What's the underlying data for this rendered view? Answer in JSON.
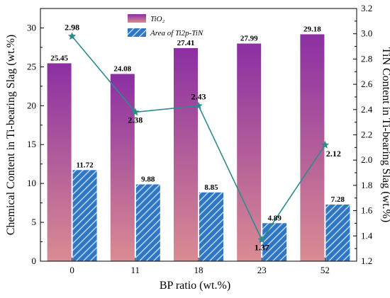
{
  "chart_data": {
    "type": "bar",
    "xlabel": "BP ratio (wt.%)",
    "ylabel": "Chemical Content in Ti-bearing Slag (wt.%)",
    "y2label": "TiN Content in Ti-bearing Slag (wt.%)",
    "categories": [
      "0",
      "11",
      "18",
      "23",
      "52"
    ],
    "ylim": [
      0,
      32.5
    ],
    "yticks": [
      "0",
      "5",
      "10",
      "15",
      "20",
      "25",
      "30"
    ],
    "y2lim": [
      1.2,
      3.2
    ],
    "y2ticks": [
      "1.2",
      "1.4",
      "1.6",
      "1.8",
      "2.0",
      "2.2",
      "2.4",
      "2.6",
      "2.8",
      "3.0",
      "3.2"
    ],
    "series": [
      {
        "name": "TiO₂",
        "type": "bar",
        "axis": "left",
        "values": [
          25.45,
          24.08,
          27.41,
          27.99,
          29.18
        ],
        "labels": [
          "25.45",
          "24.08",
          "27.41",
          "27.99",
          "29.18"
        ],
        "color_top": "#8b2fa3",
        "color_bottom": "#d98c92"
      },
      {
        "name": "Area of Ti2p-TiN",
        "type": "bar",
        "axis": "left",
        "values": [
          11.72,
          9.88,
          8.85,
          4.89,
          7.28
        ],
        "labels": [
          "11.72",
          "9.88",
          "8.85",
          "4.89",
          "7.28"
        ],
        "color": "#2f77c4",
        "hatch_color": "#bcd6ee"
      },
      {
        "name": "",
        "type": "line",
        "axis": "right",
        "values": [
          2.98,
          2.38,
          2.43,
          1.37,
          2.12
        ],
        "labels": [
          "2.98",
          "2.38",
          "2.43",
          "1.37",
          "2.12"
        ],
        "color": "#2e8b8b",
        "marker": "star"
      }
    ],
    "legend_position": "top-center",
    "grid": false
  }
}
